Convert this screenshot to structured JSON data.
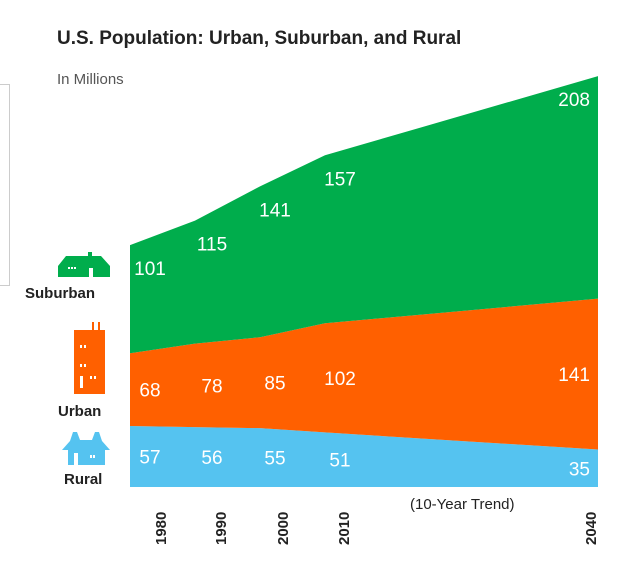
{
  "chart_data": {
    "type": "area",
    "stacked": true,
    "title": "U.S. Population: Urban, Suburban, and Rural",
    "subtitle": "In Millions",
    "categories": [
      "1980",
      "1990",
      "2000",
      "2010",
      "2040"
    ],
    "x_note": "(10-Year Trend)",
    "series": [
      {
        "name": "Rural",
        "values": [
          57,
          56,
          55,
          51,
          35
        ],
        "color": "#55c3f0"
      },
      {
        "name": "Urban",
        "values": [
          68,
          78,
          85,
          102,
          141
        ],
        "color": "#ff6000"
      },
      {
        "name": "Suburban",
        "values": [
          101,
          115,
          141,
          157,
          208
        ],
        "color": "#00ad4c"
      }
    ],
    "grid": false,
    "legend": "left",
    "legend_icons": {
      "Suburban": "house-icon",
      "Urban": "apartment-building-icon",
      "Rural": "farmhouse-icon"
    }
  }
}
